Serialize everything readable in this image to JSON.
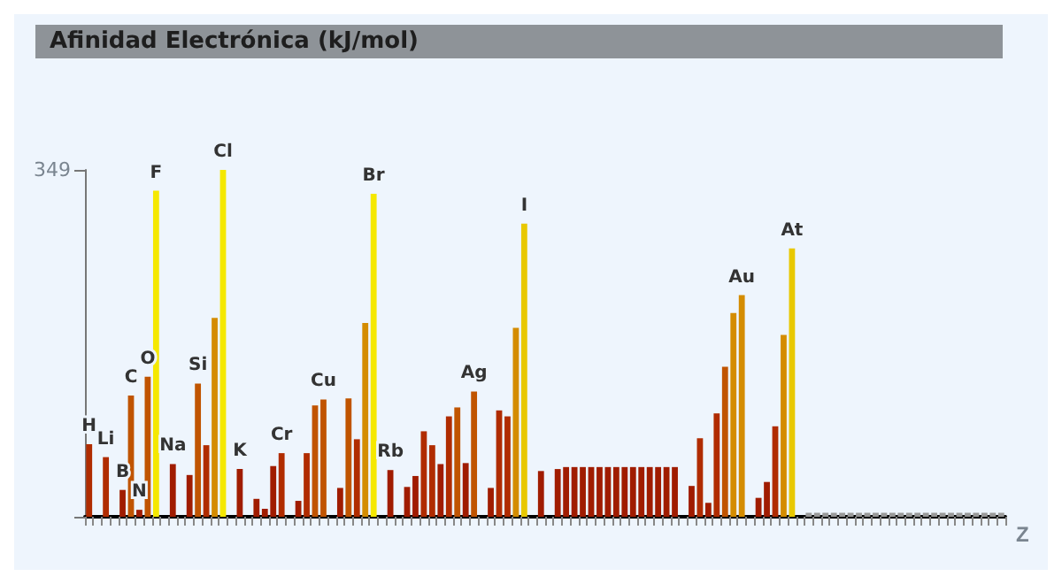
{
  "chart_data": {
    "type": "bar",
    "title": "Afinidad Electrónica (kJ/mol)",
    "xlabel": "Z",
    "categories": [
      "H",
      null,
      "Li",
      null,
      "B",
      "C",
      "N",
      "O",
      "F",
      null,
      "Na",
      null,
      null,
      "Si",
      null,
      null,
      "Cl",
      null,
      "K",
      null,
      null,
      null,
      null,
      "Cr",
      null,
      null,
      null,
      null,
      "Cu",
      null,
      null,
      null,
      null,
      null,
      "Br",
      null,
      "Rb",
      null,
      null,
      null,
      null,
      null,
      null,
      null,
      null,
      null,
      "Ag",
      null,
      null,
      null,
      null,
      null,
      "I",
      null,
      null,
      null,
      null,
      null,
      null,
      null,
      null,
      null,
      null,
      null,
      null,
      null,
      null,
      null,
      null,
      null,
      null,
      null,
      null,
      null,
      null,
      null,
      null,
      null,
      "Au",
      null,
      null,
      null,
      null,
      null,
      "At",
      null,
      null,
      null,
      null,
      null,
      null,
      null,
      null,
      null,
      null,
      null,
      null,
      null,
      null,
      null,
      null,
      null,
      null,
      null,
      null,
      null,
      null,
      null,
      null,
      null
    ],
    "values": [
      73,
      0,
      60,
      0,
      27,
      122,
      7,
      141,
      328,
      0,
      53,
      0,
      42,
      134,
      72,
      200,
      349,
      0,
      48,
      0,
      18,
      8,
      51,
      64,
      0,
      16,
      64,
      112,
      118,
      0,
      29,
      119,
      78,
      195,
      325,
      0,
      47,
      0,
      30,
      41,
      86,
      72,
      53,
      101,
      110,
      54,
      126,
      0,
      29,
      107,
      101,
      190,
      295,
      0,
      46,
      0,
      48,
      50,
      50,
      50,
      50,
      50,
      50,
      50,
      50,
      50,
      50,
      50,
      50,
      50,
      50,
      0,
      31,
      79,
      14,
      104,
      151,
      205,
      223,
      0,
      19,
      35,
      91,
      183,
      270,
      0,
      4,
      4,
      4,
      4,
      4,
      4,
      4,
      4,
      4,
      4,
      4,
      4,
      4,
      4,
      4,
      4,
      4,
      4,
      4,
      4,
      4,
      4,
      4,
      4
    ],
    "colors": [
      "#b02c00",
      "#a01c00",
      "#b02c00",
      "#a01c00",
      "#a01c00",
      "#c05400",
      "#a01c00",
      "#c05400",
      "#f5e800",
      "#a01c00",
      "#a01c00",
      "#a01c00",
      "#a01c00",
      "#c05400",
      "#b02c00",
      "#d48c00",
      "#f5e800",
      "#a01c00",
      "#a01c00",
      "#a01c00",
      "#a01c00",
      "#a01c00",
      "#a01c00",
      "#b02c00",
      "#a01c00",
      "#a01c00",
      "#b02c00",
      "#c05400",
      "#c05400",
      "#a01c00",
      "#a01c00",
      "#c05400",
      "#b02c00",
      "#d48c00",
      "#f5e800",
      "#a01c00",
      "#a01c00",
      "#a01c00",
      "#a01c00",
      "#a01c00",
      "#b02c00",
      "#b02c00",
      "#a01c00",
      "#b02c00",
      "#c05400",
      "#a01c00",
      "#c05400",
      "#a01c00",
      "#a01c00",
      "#b02c00",
      "#b02c00",
      "#d48c00",
      "#e8c800",
      "#a01c00",
      "#a01c00",
      "#a01c00",
      "#a01c00",
      "#a01c00",
      "#a01c00",
      "#a01c00",
      "#a01c00",
      "#a01c00",
      "#a01c00",
      "#a01c00",
      "#a01c00",
      "#a01c00",
      "#a01c00",
      "#a01c00",
      "#a01c00",
      "#a01c00",
      "#a01c00",
      "#a01c00",
      "#a01c00",
      "#b02c00",
      "#a01c00",
      "#b02c00",
      "#c05400",
      "#d48c00",
      "#d48c00",
      "#a01c00",
      "#a01c00",
      "#a01c00",
      "#b02c00",
      "#d48c00",
      "#e8c800",
      "#a01c00",
      "#999999",
      "#999999",
      "#999999",
      "#999999",
      "#999999",
      "#999999",
      "#999999",
      "#999999",
      "#999999",
      "#999999",
      "#999999",
      "#999999",
      "#999999",
      "#999999",
      "#999999",
      "#999999",
      "#999999",
      "#999999",
      "#999999",
      "#999999",
      "#999999",
      "#999999",
      "#999999",
      "#999999"
    ],
    "ylim": [
      0,
      349
    ],
    "yticks": [
      {
        "value": 0,
        "label": null
      },
      349
    ]
  }
}
